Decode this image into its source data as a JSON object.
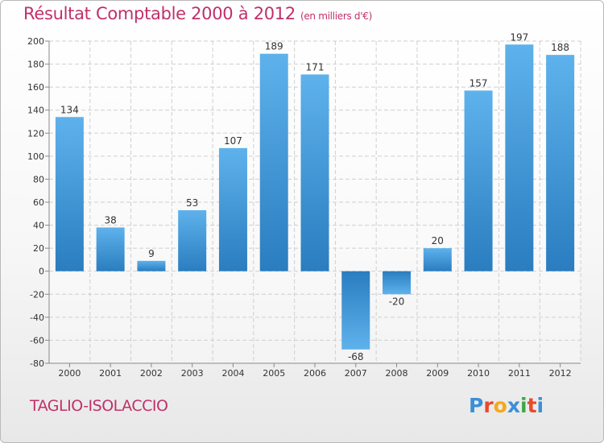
{
  "chart_data": {
    "type": "bar",
    "title": "Résultat Comptable 2000 à 2012",
    "subtitle": "(en milliers d'€)",
    "xlabel": "",
    "ylabel": "",
    "categories": [
      "2000",
      "2001",
      "2002",
      "2003",
      "2004",
      "2005",
      "2006",
      "2007",
      "2008",
      "2009",
      "2010",
      "2011",
      "2012"
    ],
    "values": [
      134,
      38,
      9,
      53,
      107,
      189,
      171,
      -68,
      -20,
      20,
      157,
      197,
      188
    ],
    "ylim": [
      -80,
      200
    ],
    "yticks": [
      -80,
      -60,
      -40,
      -20,
      0,
      20,
      40,
      60,
      80,
      100,
      120,
      140,
      160,
      180,
      200
    ],
    "grid": true,
    "colors": {
      "bar_light": "#5eb2ec",
      "bar_dark": "#2a7dbf"
    }
  },
  "location": "TAGLIO-ISOLACCIO",
  "brand": {
    "name": "Proxiti",
    "letters": [
      "P",
      "r",
      "o",
      "x",
      "i",
      "t",
      "i"
    ],
    "colors": [
      "#3a8fd8",
      "#e84a2a",
      "#f4a91c",
      "#3a8fd8",
      "#3aa843",
      "#e84a2a",
      "#3a8fd8"
    ]
  },
  "colors": {
    "title": "#c0306a"
  }
}
